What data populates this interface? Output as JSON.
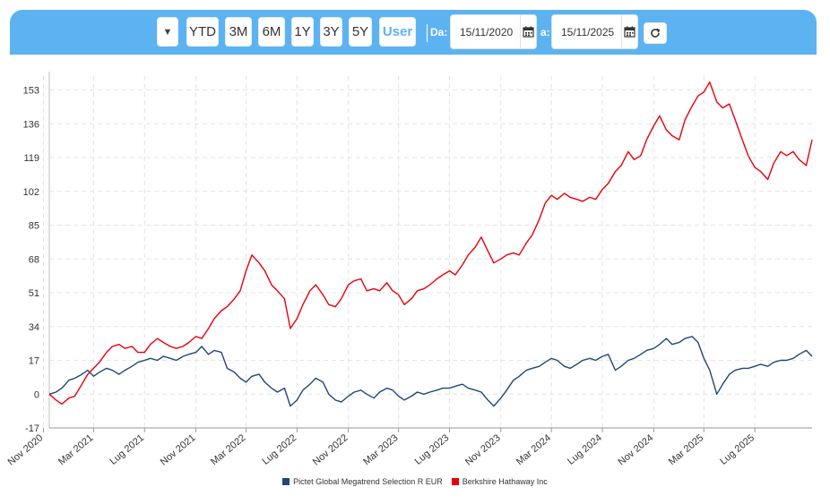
{
  "toolbar": {
    "dropdown_icon": "▼",
    "buttons": [
      "YTD",
      "3M",
      "6M",
      "1Y",
      "3Y",
      "5Y",
      "User"
    ],
    "active_button": "User",
    "from_label": "Da:",
    "from_date": "15/11/2020",
    "to_label": "a:",
    "to_date": "15/11/2025",
    "calendar_icon": "calendar-icon",
    "refresh_icon": "refresh-icon",
    "color": "#5db3f1"
  },
  "chart_data": {
    "type": "line",
    "x_ticks": [
      "Nov 2020",
      "Mar 2021",
      "Lug 2021",
      "Nov 2021",
      "Mar 2022",
      "Lug 2022",
      "Nov 2022",
      "Mar 2023",
      "Lug 2023",
      "Nov 2023",
      "Mar 2024",
      "Lug 2024",
      "Nov 2024",
      "Mar 2025",
      "Lug 2025"
    ],
    "y_ticks": [
      -17,
      0,
      17,
      34,
      51,
      68,
      85,
      102,
      119,
      136,
      153
    ],
    "ylim": [
      -17,
      160
    ],
    "x_range": [
      "2020-11-15",
      "2025-11-15"
    ],
    "grid": true,
    "legend_position": "bottom-center",
    "series": [
      {
        "name": "Pictet Global Megatrend Selection R EUR",
        "color": "#1f4878",
        "points": [
          [
            "2020-11-15",
            0
          ],
          [
            "2020-12-01",
            1
          ],
          [
            "2020-12-15",
            3
          ],
          [
            "2021-01-01",
            7
          ],
          [
            "2021-01-15",
            8
          ],
          [
            "2021-02-01",
            10
          ],
          [
            "2021-02-15",
            12
          ],
          [
            "2021-03-01",
            9
          ],
          [
            "2021-03-15",
            11
          ],
          [
            "2021-04-01",
            13
          ],
          [
            "2021-04-15",
            12
          ],
          [
            "2021-05-01",
            10
          ],
          [
            "2021-05-15",
            12
          ],
          [
            "2021-06-01",
            14
          ],
          [
            "2021-06-15",
            16
          ],
          [
            "2021-07-01",
            17
          ],
          [
            "2021-07-15",
            18
          ],
          [
            "2021-08-01",
            17
          ],
          [
            "2021-08-15",
            19
          ],
          [
            "2021-09-01",
            18
          ],
          [
            "2021-09-15",
            17
          ],
          [
            "2021-10-01",
            19
          ],
          [
            "2021-10-15",
            20
          ],
          [
            "2021-11-01",
            21
          ],
          [
            "2021-11-15",
            24
          ],
          [
            "2021-12-01",
            20
          ],
          [
            "2021-12-15",
            22
          ],
          [
            "2022-01-01",
            21
          ],
          [
            "2022-01-15",
            13
          ],
          [
            "2022-02-01",
            11
          ],
          [
            "2022-02-15",
            8
          ],
          [
            "2022-03-01",
            6
          ],
          [
            "2022-03-15",
            9
          ],
          [
            "2022-04-01",
            10
          ],
          [
            "2022-04-15",
            6
          ],
          [
            "2022-05-01",
            3
          ],
          [
            "2022-05-15",
            1
          ],
          [
            "2022-06-01",
            3
          ],
          [
            "2022-06-15",
            -6
          ],
          [
            "2022-07-01",
            -3
          ],
          [
            "2022-07-15",
            2
          ],
          [
            "2022-08-01",
            5
          ],
          [
            "2022-08-15",
            8
          ],
          [
            "2022-09-01",
            6
          ],
          [
            "2022-09-15",
            0
          ],
          [
            "2022-10-01",
            -3
          ],
          [
            "2022-10-15",
            -4
          ],
          [
            "2022-11-01",
            -1
          ],
          [
            "2022-11-15",
            1
          ],
          [
            "2022-12-01",
            2
          ],
          [
            "2022-12-15",
            0
          ],
          [
            "2023-01-01",
            -2
          ],
          [
            "2023-01-15",
            1
          ],
          [
            "2023-02-01",
            3
          ],
          [
            "2023-02-15",
            2
          ],
          [
            "2023-03-01",
            -1
          ],
          [
            "2023-03-15",
            -3
          ],
          [
            "2023-04-01",
            -1
          ],
          [
            "2023-04-15",
            1
          ],
          [
            "2023-05-01",
            0
          ],
          [
            "2023-05-15",
            1
          ],
          [
            "2023-06-01",
            2
          ],
          [
            "2023-06-15",
            3
          ],
          [
            "2023-07-01",
            3
          ],
          [
            "2023-07-15",
            4
          ],
          [
            "2023-08-01",
            5
          ],
          [
            "2023-08-15",
            3
          ],
          [
            "2023-09-01",
            2
          ],
          [
            "2023-09-15",
            1
          ],
          [
            "2023-10-01",
            -3
          ],
          [
            "2023-10-15",
            -6
          ],
          [
            "2023-11-01",
            -2
          ],
          [
            "2023-11-15",
            2
          ],
          [
            "2023-12-01",
            7
          ],
          [
            "2023-12-15",
            9
          ],
          [
            "2024-01-01",
            12
          ],
          [
            "2024-01-15",
            13
          ],
          [
            "2024-02-01",
            14
          ],
          [
            "2024-02-15",
            16
          ],
          [
            "2024-03-01",
            18
          ],
          [
            "2024-03-15",
            17
          ],
          [
            "2024-04-01",
            14
          ],
          [
            "2024-04-15",
            13
          ],
          [
            "2024-05-01",
            15
          ],
          [
            "2024-05-15",
            17
          ],
          [
            "2024-06-01",
            18
          ],
          [
            "2024-06-15",
            17
          ],
          [
            "2024-07-01",
            19
          ],
          [
            "2024-07-15",
            20
          ],
          [
            "2024-08-01",
            12
          ],
          [
            "2024-08-15",
            14
          ],
          [
            "2024-09-01",
            17
          ],
          [
            "2024-09-15",
            18
          ],
          [
            "2024-10-01",
            20
          ],
          [
            "2024-10-15",
            22
          ],
          [
            "2024-11-01",
            23
          ],
          [
            "2024-11-15",
            25
          ],
          [
            "2024-12-01",
            28
          ],
          [
            "2024-12-15",
            25
          ],
          [
            "2025-01-01",
            26
          ],
          [
            "2025-01-15",
            28
          ],
          [
            "2025-02-01",
            29
          ],
          [
            "2025-02-15",
            26
          ],
          [
            "2025-03-01",
            18
          ],
          [
            "2025-03-15",
            12
          ],
          [
            "2025-04-01",
            0
          ],
          [
            "2025-04-15",
            5
          ],
          [
            "2025-05-01",
            10
          ],
          [
            "2025-05-15",
            12
          ],
          [
            "2025-06-01",
            13
          ],
          [
            "2025-06-15",
            13
          ],
          [
            "2025-07-01",
            14
          ],
          [
            "2025-07-15",
            15
          ],
          [
            "2025-08-01",
            14
          ],
          [
            "2025-08-15",
            16
          ],
          [
            "2025-09-01",
            17
          ],
          [
            "2025-09-15",
            17
          ],
          [
            "2025-10-01",
            18
          ],
          [
            "2025-10-15",
            20
          ],
          [
            "2025-11-01",
            22
          ],
          [
            "2025-11-15",
            19
          ]
        ]
      },
      {
        "name": "Berkshire Hathaway Inc",
        "color": "#e8000b",
        "points": [
          [
            "2020-11-15",
            0
          ],
          [
            "2020-12-01",
            -3
          ],
          [
            "2020-12-15",
            -5
          ],
          [
            "2021-01-01",
            -2
          ],
          [
            "2021-01-15",
            -1
          ],
          [
            "2021-02-01",
            5
          ],
          [
            "2021-02-15",
            10
          ],
          [
            "2021-03-01",
            13
          ],
          [
            "2021-03-15",
            16
          ],
          [
            "2021-04-01",
            21
          ],
          [
            "2021-04-15",
            24
          ],
          [
            "2021-05-01",
            25
          ],
          [
            "2021-05-15",
            23
          ],
          [
            "2021-06-01",
            24
          ],
          [
            "2021-06-15",
            21
          ],
          [
            "2021-07-01",
            21
          ],
          [
            "2021-07-15",
            25
          ],
          [
            "2021-08-01",
            28
          ],
          [
            "2021-08-15",
            26
          ],
          [
            "2021-09-01",
            24
          ],
          [
            "2021-09-15",
            23
          ],
          [
            "2021-10-01",
            24
          ],
          [
            "2021-10-15",
            26
          ],
          [
            "2021-11-01",
            29
          ],
          [
            "2021-11-15",
            28
          ],
          [
            "2021-12-01",
            33
          ],
          [
            "2021-12-15",
            38
          ],
          [
            "2022-01-01",
            42
          ],
          [
            "2022-01-15",
            44
          ],
          [
            "2022-02-01",
            48
          ],
          [
            "2022-02-15",
            52
          ],
          [
            "2022-03-01",
            62
          ],
          [
            "2022-03-15",
            70
          ],
          [
            "2022-04-01",
            66
          ],
          [
            "2022-04-15",
            62
          ],
          [
            "2022-05-01",
            55
          ],
          [
            "2022-05-15",
            52
          ],
          [
            "2022-06-01",
            48
          ],
          [
            "2022-06-15",
            33
          ],
          [
            "2022-07-01",
            38
          ],
          [
            "2022-07-15",
            45
          ],
          [
            "2022-08-01",
            52
          ],
          [
            "2022-08-15",
            55
          ],
          [
            "2022-09-01",
            50
          ],
          [
            "2022-09-15",
            45
          ],
          [
            "2022-10-01",
            44
          ],
          [
            "2022-10-15",
            48
          ],
          [
            "2022-11-01",
            55
          ],
          [
            "2022-11-15",
            57
          ],
          [
            "2022-12-01",
            58
          ],
          [
            "2022-12-15",
            52
          ],
          [
            "2023-01-01",
            53
          ],
          [
            "2023-01-15",
            52
          ],
          [
            "2023-02-01",
            56
          ],
          [
            "2023-02-15",
            52
          ],
          [
            "2023-03-01",
            50
          ],
          [
            "2023-03-15",
            45
          ],
          [
            "2023-04-01",
            48
          ],
          [
            "2023-04-15",
            52
          ],
          [
            "2023-05-01",
            53
          ],
          [
            "2023-05-15",
            55
          ],
          [
            "2023-06-01",
            58
          ],
          [
            "2023-06-15",
            60
          ],
          [
            "2023-07-01",
            62
          ],
          [
            "2023-07-15",
            60
          ],
          [
            "2023-08-01",
            65
          ],
          [
            "2023-08-15",
            70
          ],
          [
            "2023-09-01",
            74
          ],
          [
            "2023-09-15",
            79
          ],
          [
            "2023-10-01",
            72
          ],
          [
            "2023-10-15",
            66
          ],
          [
            "2023-11-01",
            68
          ],
          [
            "2023-11-15",
            70
          ],
          [
            "2023-12-01",
            71
          ],
          [
            "2023-12-15",
            70
          ],
          [
            "2024-01-01",
            76
          ],
          [
            "2024-01-15",
            80
          ],
          [
            "2024-02-01",
            88
          ],
          [
            "2024-02-15",
            96
          ],
          [
            "2024-03-01",
            100
          ],
          [
            "2024-03-15",
            98
          ],
          [
            "2024-04-01",
            101
          ],
          [
            "2024-04-15",
            99
          ],
          [
            "2024-05-01",
            98
          ],
          [
            "2024-05-15",
            97
          ],
          [
            "2024-06-01",
            99
          ],
          [
            "2024-06-15",
            98
          ],
          [
            "2024-07-01",
            103
          ],
          [
            "2024-07-15",
            106
          ],
          [
            "2024-08-01",
            112
          ],
          [
            "2024-08-15",
            115
          ],
          [
            "2024-09-01",
            122
          ],
          [
            "2024-09-15",
            118
          ],
          [
            "2024-10-01",
            120
          ],
          [
            "2024-10-15",
            128
          ],
          [
            "2024-11-01",
            135
          ],
          [
            "2024-11-15",
            140
          ],
          [
            "2024-12-01",
            133
          ],
          [
            "2024-12-15",
            130
          ],
          [
            "2025-01-01",
            128
          ],
          [
            "2025-01-15",
            138
          ],
          [
            "2025-02-01",
            145
          ],
          [
            "2025-02-15",
            150
          ],
          [
            "2025-03-01",
            152
          ],
          [
            "2025-03-15",
            157
          ],
          [
            "2025-04-01",
            147
          ],
          [
            "2025-04-15",
            144
          ],
          [
            "2025-05-01",
            146
          ],
          [
            "2025-05-15",
            138
          ],
          [
            "2025-06-01",
            128
          ],
          [
            "2025-06-15",
            120
          ],
          [
            "2025-07-01",
            114
          ],
          [
            "2025-07-15",
            112
          ],
          [
            "2025-08-01",
            108
          ],
          [
            "2025-08-15",
            116
          ],
          [
            "2025-09-01",
            122
          ],
          [
            "2025-09-15",
            120
          ],
          [
            "2025-10-01",
            122
          ],
          [
            "2025-10-15",
            118
          ],
          [
            "2025-11-01",
            115
          ],
          [
            "2025-11-15",
            128
          ]
        ]
      }
    ]
  }
}
